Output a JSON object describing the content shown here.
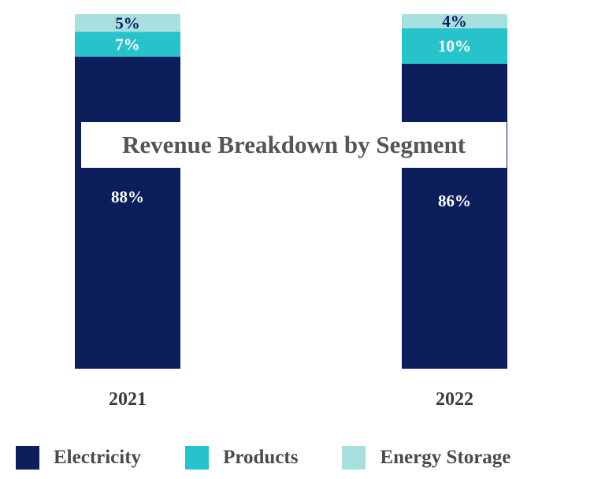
{
  "chart_data": {
    "type": "bar",
    "stacked": true,
    "title": "Revenue Breakdown by Segment",
    "categories": [
      "2021",
      "2022"
    ],
    "series": [
      {
        "name": "Electricity",
        "values": [
          88,
          86
        ],
        "labels": [
          "88%",
          "86%"
        ],
        "color": "#0c1f5c",
        "label_color": "#ffffff"
      },
      {
        "name": "Products",
        "values": [
          7,
          10
        ],
        "labels": [
          "7%",
          "10%"
        ],
        "color": "#27c3cd",
        "label_color": "#ffffff"
      },
      {
        "name": "Energy Storage",
        "values": [
          5,
          4
        ],
        "labels": [
          "5%",
          "4%"
        ],
        "color": "#a8dfdf",
        "label_color": "#0c1f5c"
      }
    ],
    "ylim": [
      0,
      100
    ],
    "xlabel": "",
    "ylabel": "",
    "grid": false,
    "legend_position": "bottom"
  }
}
